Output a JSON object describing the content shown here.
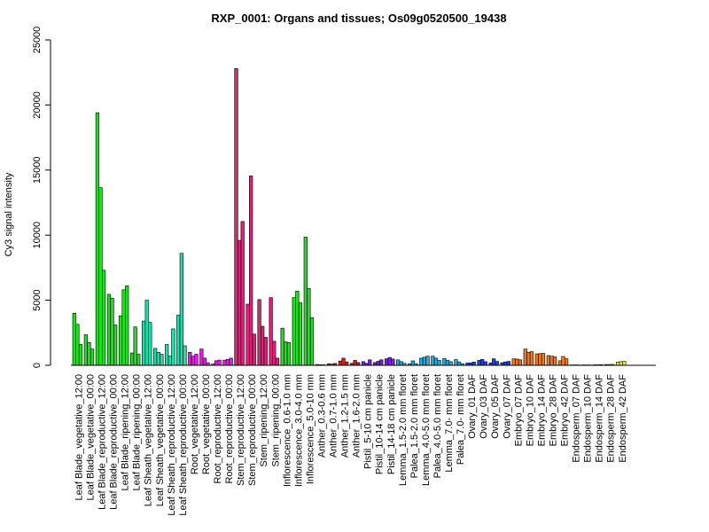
{
  "chart_data": {
    "type": "bar",
    "title": "RXP_0001: Organs and tissues; Os09g0520500_19438",
    "xlabel": "",
    "ylabel": "Cy3 signal intensity",
    "ylim": [
      0,
      25000
    ],
    "yticks": [
      0,
      5000,
      10000,
      15000,
      20000,
      25000
    ],
    "ytick_labels": [
      "0",
      "5000",
      "10000",
      "15000",
      "20000",
      "25000"
    ],
    "grid": false,
    "legend": "none",
    "categories": [
      "Leaf Blade_vegetative_12:00",
      "Leaf Blade_vegetative_00:00",
      "Leaf Blade_reproductive_12:00",
      "Leaf Blade_reproductive_00:00",
      "Leaf Blade_ripening_12:00",
      "Leaf Blade_ripening_00:00",
      "Leaf Sheath_vegetative_12:00",
      "Leaf Sheath_vegetative_00:00",
      "Leaf Sheath_reproductive_12:00",
      "Leaf Sheath_reproductive_00:00",
      "Root_vegetative_12:00",
      "Root_vegetative_00:00",
      "Root_reproductive_12:00",
      "Root_reproductive_00:00",
      "Stem_reproductive_12:00",
      "Stem_reproductive_00:00",
      "Stem_ripening_12:00",
      "Stem_ripening_00:00",
      "Inflorescence_0.6-1.0 mm",
      "Inflorescence_3.0-4.0 mm",
      "Inflorescence_5.0-10 mm",
      "Anther_0.3-0.6 mm",
      "Anther_0.7-1.0 mm",
      "Anther_1.2-1.5 mm",
      "Anther_1.6-2.0 mm",
      "Pistil_5-10 cm panicle",
      "Pistil_10-14 cm panicle",
      "Pistil_14-18 cm panicle",
      "Lemma_1.5-2.0 mm floret",
      "Palea_1.5-2.0 mm floret",
      "Lemma_4.0-5.0 mm floret",
      "Palea_4.0-5.0 mm floret",
      "Lemma_7.0- mm floret",
      "Palea_7.0- mm floret",
      "Ovary_01 DAF",
      "Ovary_03 DAF",
      "Ovary_05 DAF",
      "Ovary_07 DAF",
      "Embryo_07 DAF",
      "Embryo_10 DAF",
      "Embryo_14 DAF",
      "Embryo_28 DAF",
      "Embryo_42 DAF",
      "Endosperm_07 DAF",
      "Endosperm_10 DAF",
      "Endosperm_14 DAF",
      "Endosperm_28 DAF",
      "Endosperm_42 DAF"
    ],
    "colors": [
      "#22dd22",
      "#22dd22",
      "#22dd22",
      "#22dd22",
      "#22dd22",
      "#22dd22",
      "#22ddaa",
      "#22ddaa",
      "#22ddaa",
      "#22ddaa",
      "#dd22dd",
      "#dd22dd",
      "#dd22dd",
      "#dd22dd",
      "#dd2277",
      "#dd2277",
      "#dd2277",
      "#dd2277",
      "#22dd22",
      "#22dd22",
      "#22dd22",
      "#cc2222",
      "#cc2222",
      "#cc2222",
      "#cc2222",
      "#7722dd",
      "#7722dd",
      "#7722dd",
      "#22aadd",
      "#22aadd",
      "#22aadd",
      "#22aadd",
      "#22aadd",
      "#22aadd",
      "#2244dd",
      "#2244dd",
      "#2244dd",
      "#2244dd",
      "#ee7722",
      "#ee7722",
      "#ee7722",
      "#ee7722",
      "#ee7722",
      "#eeee22",
      "#eeee22",
      "#eeee22",
      "#eeee22",
      "#eeee22"
    ],
    "values": [
      [
        4000,
        3150,
        1600
      ],
      [
        2350,
        1750,
        1250
      ],
      [
        19400,
        13650,
        7300
      ],
      [
        5450,
        5150,
        3100
      ],
      [
        3800,
        5800,
        6100
      ],
      [
        950,
        2950,
        850
      ],
      [
        3400,
        5000,
        3300
      ],
      [
        1300,
        1000,
        850
      ],
      [
        1600,
        700,
        2800
      ],
      [
        3850,
        8600,
        1500
      ],
      [
        1000,
        700,
        850
      ],
      [
        1250,
        550,
        200
      ],
      [
        100,
        350,
        400
      ],
      [
        400,
        450,
        550
      ],
      [
        22800,
        9600,
        11050
      ],
      [
        4700,
        14550,
        2400
      ],
      [
        5050,
        3000,
        2150
      ],
      [
        5200,
        1850,
        550
      ],
      [
        2850,
        1800,
        1750
      ],
      [
        5200,
        5700,
        4800
      ],
      [
        9850,
        5900,
        3650
      ],
      [
        60,
        50,
        40
      ],
      [
        120,
        90,
        140
      ],
      [
        330,
        550,
        260
      ],
      [
        150,
        380,
        210
      ],
      [
        280,
        150,
        420
      ],
      [
        210,
        310,
        420
      ],
      [
        500,
        600,
        480
      ],
      [
        420,
        280,
        150
      ],
      [
        110,
        340,
        130
      ],
      [
        550,
        620,
        700
      ],
      [
        700,
        550,
        380
      ],
      [
        520,
        380,
        280
      ],
      [
        440,
        260,
        120
      ],
      [
        170,
        180,
        250
      ],
      [
        380,
        450,
        280
      ],
      [
        180,
        500,
        300
      ],
      [
        200,
        260,
        300
      ],
      [
        500,
        480,
        420
      ],
      [
        1250,
        1000,
        1050
      ],
      [
        880,
        900,
        920
      ],
      [
        750,
        700,
        650
      ],
      [
        350,
        680,
        500
      ],
      [
        30,
        30,
        30
      ],
      [
        30,
        30,
        30
      ],
      [
        40,
        40,
        50
      ],
      [
        60,
        60,
        70
      ],
      [
        250,
        280,
        300
      ]
    ]
  }
}
